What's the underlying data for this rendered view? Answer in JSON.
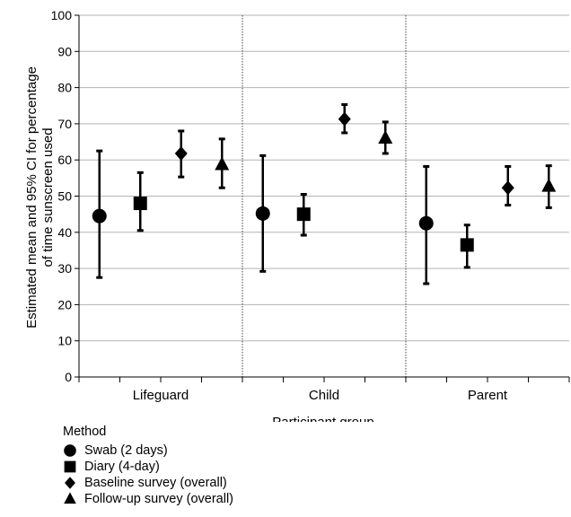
{
  "chart_data": {
    "type": "scatter",
    "xlabel": "Participant group",
    "ylabel_lines": [
      "Estimated mean and 95% CI for percentage",
      "of time sunscreen used"
    ],
    "ylim": [
      0,
      100
    ],
    "yticks": [
      0,
      10,
      20,
      30,
      40,
      50,
      60,
      70,
      80,
      90,
      100
    ],
    "categories": [
      "Lifeguard",
      "Child",
      "Parent"
    ],
    "grid": "horizontal",
    "legend_position": "bottom-left",
    "legend_title": "Method",
    "series": [
      {
        "name": "Swab (2 days)",
        "marker": "circle",
        "values": [
          44.5,
          45.2,
          42.5
        ],
        "ci_low": [
          27.5,
          29.2,
          25.8
        ],
        "ci_high": [
          62.5,
          61.2,
          58.2
        ]
      },
      {
        "name": "Diary (4-day)",
        "marker": "square",
        "values": [
          48.0,
          45.0,
          36.5
        ],
        "ci_low": [
          40.5,
          39.2,
          30.3
        ],
        "ci_high": [
          56.5,
          50.5,
          42.0
        ]
      },
      {
        "name": "Baseline survey (overall)",
        "marker": "diamond",
        "values": [
          61.8,
          71.3,
          52.3
        ],
        "ci_low": [
          55.3,
          67.5,
          47.5
        ],
        "ci_high": [
          68.0,
          75.3,
          58.2
        ]
      },
      {
        "name": "Follow-up survey (overall)",
        "marker": "triangle",
        "values": [
          58.7,
          66.0,
          52.7
        ],
        "ci_low": [
          52.3,
          61.8,
          46.8
        ],
        "ci_high": [
          65.8,
          70.5,
          58.4
        ]
      }
    ]
  }
}
